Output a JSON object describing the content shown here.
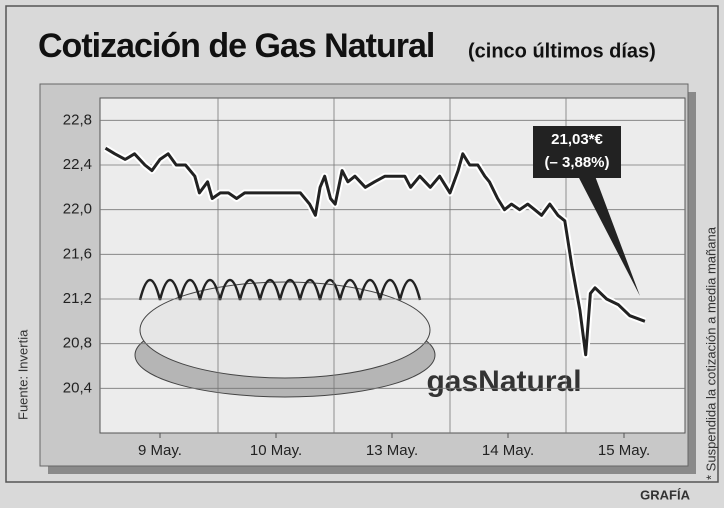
{
  "chart_data": {
    "type": "line",
    "title": "Cotización de Gas Natural",
    "subtitle": "(cinco últimos días)",
    "source": "Fuente: Invertia",
    "note": "* Suspendida la cotización a media mañana",
    "credit": "GRAFÍA",
    "logo": "gasNatural",
    "annotation": {
      "price": "21,03*€",
      "change": "(– 3,88%)"
    },
    "xlim": [
      0,
      5
    ],
    "xticks": [
      {
        "value": 0.5,
        "label": "9 May."
      },
      {
        "value": 1.5,
        "label": "10 May."
      },
      {
        "value": 2.5,
        "label": "13 May."
      },
      {
        "value": 3.5,
        "label": "14 May."
      },
      {
        "value": 4.5,
        "label": "15 May."
      }
    ],
    "ylim": [
      20.0,
      23.0
    ],
    "yticks": [
      {
        "value": 20.4,
        "label": "20,4"
      },
      {
        "value": 20.8,
        "label": "20,8"
      },
      {
        "value": 21.2,
        "label": "21,2"
      },
      {
        "value": 21.6,
        "label": "21,6"
      },
      {
        "value": 22.0,
        "label": "22,0"
      },
      {
        "value": 22.4,
        "label": "22,4"
      },
      {
        "value": 22.8,
        "label": "22,8"
      }
    ],
    "grid": true,
    "series": [
      {
        "color": "#222222",
        "x": [
          0.03,
          0.11,
          0.2,
          0.28,
          0.37,
          0.43,
          0.5,
          0.57,
          0.64,
          0.72,
          0.8,
          0.84,
          0.91,
          0.95,
          1.02,
          1.09,
          1.16,
          1.23,
          1.36,
          1.53,
          1.71,
          1.79,
          1.84,
          1.88,
          1.92,
          1.97,
          2.01,
          2.07,
          2.12,
          2.18,
          2.27,
          2.35,
          2.44,
          2.53,
          2.61,
          2.66,
          2.74,
          2.83,
          2.91,
          3.0,
          3.07,
          3.11,
          3.17,
          3.24,
          3.3,
          3.34,
          3.41,
          3.47,
          3.53,
          3.6,
          3.67,
          3.73,
          3.79,
          3.86,
          3.93,
          3.99,
          4.05,
          4.12,
          4.17,
          4.21,
          4.25,
          4.35,
          4.45,
          4.55,
          4.68
        ],
        "values": [
          22.55,
          22.5,
          22.45,
          22.5,
          22.4,
          22.35,
          22.45,
          22.5,
          22.4,
          22.4,
          22.3,
          22.15,
          22.25,
          22.1,
          22.15,
          22.15,
          22.1,
          22.15,
          22.15,
          22.15,
          22.15,
          22.05,
          21.95,
          22.2,
          22.3,
          22.1,
          22.05,
          22.35,
          22.25,
          22.3,
          22.2,
          22.25,
          22.3,
          22.3,
          22.3,
          22.2,
          22.3,
          22.2,
          22.3,
          22.15,
          22.35,
          22.5,
          22.4,
          22.4,
          22.3,
          22.25,
          22.1,
          22.0,
          22.05,
          22.0,
          22.05,
          22.0,
          21.95,
          22.05,
          21.95,
          21.9,
          21.5,
          21.1,
          20.7,
          21.25,
          21.3,
          21.2,
          21.15,
          21.05,
          21.0
        ]
      }
    ]
  }
}
